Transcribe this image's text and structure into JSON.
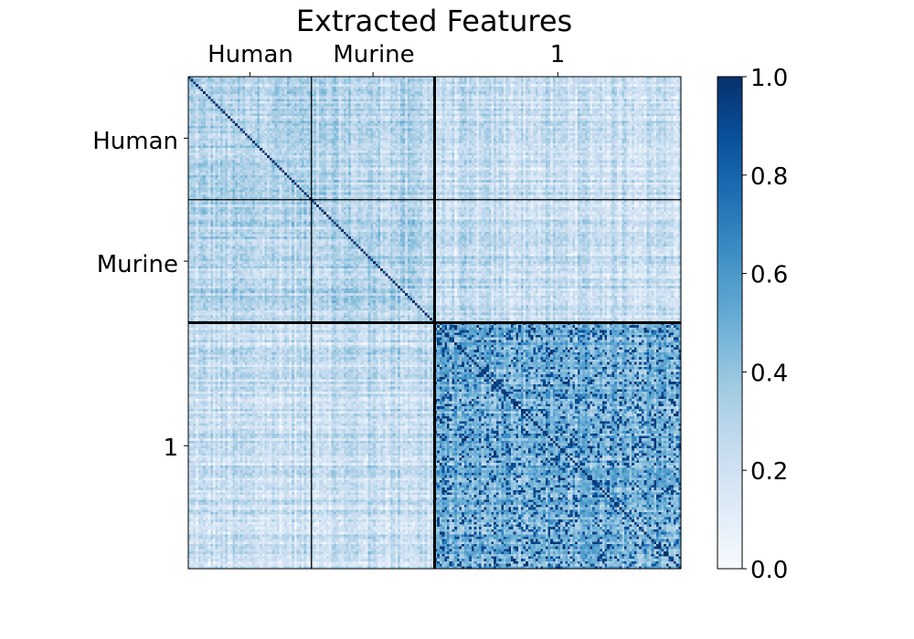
{
  "chart_data": {
    "type": "heatmap",
    "title": "Extracted Features",
    "x_group_labels": [
      "Human",
      "Murine",
      "1"
    ],
    "y_group_labels": [
      "Human",
      "Murine",
      "1"
    ],
    "group_sizes": [
      50,
      50,
      100
    ],
    "block_mean_similarity": [
      [
        0.3,
        0.28,
        0.22
      ],
      [
        0.28,
        0.32,
        0.24
      ],
      [
        0.22,
        0.24,
        0.45
      ]
    ],
    "diagonal_value": 1.0,
    "colormap": "Blues",
    "colormap_stops": [
      "#f7fbff",
      "#deebf7",
      "#c6dbef",
      "#9ecae1",
      "#6baed6",
      "#4292c6",
      "#2171b5",
      "#08519c",
      "#08306b"
    ],
    "vmin": 0.0,
    "vmax": 1.0,
    "colorbar_ticks": [
      "0.0",
      "0.2",
      "0.4",
      "0.6",
      "0.8",
      "1.0"
    ],
    "colorbar_tick_values": [
      0.0,
      0.2,
      0.4,
      0.6,
      0.8,
      1.0
    ],
    "group_boundary_lines": true,
    "xaxis_ticks_position": "top",
    "grid": false
  }
}
